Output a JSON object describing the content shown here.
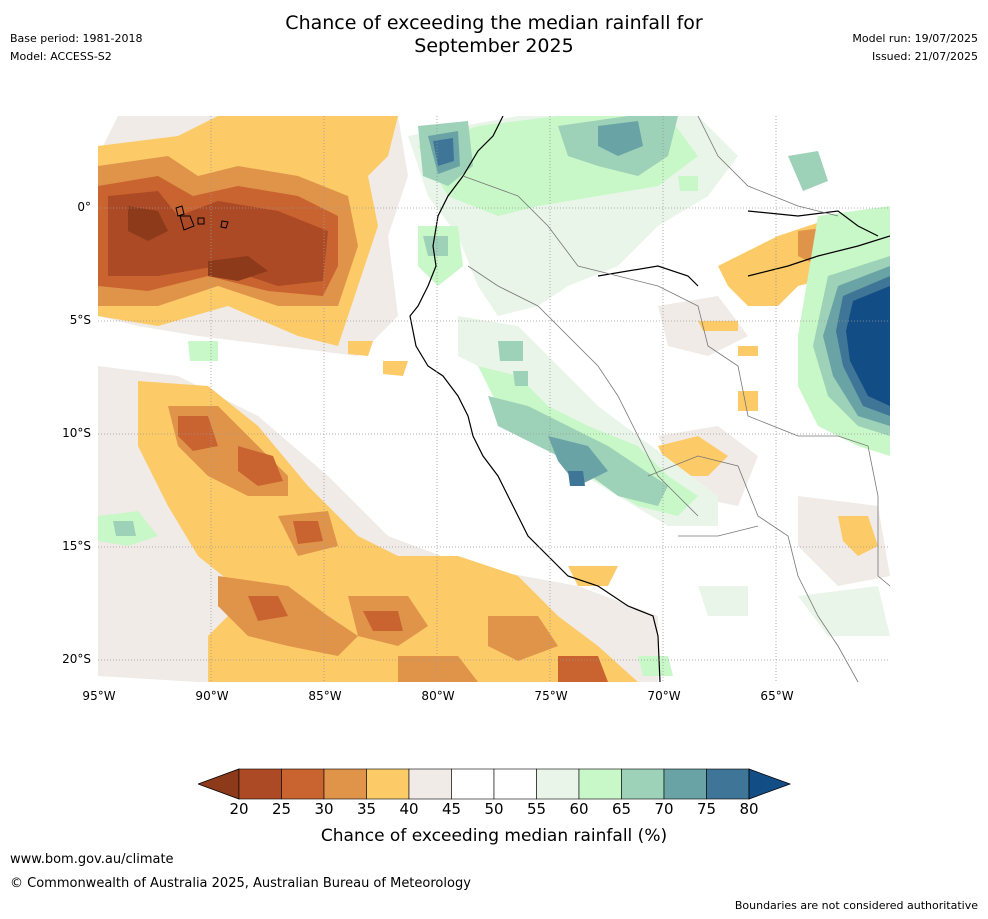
{
  "title_line1": "Chance of exceeding the median rainfall for",
  "title_line2": "September 2025",
  "base_period": "Base period: 1981-2018",
  "model": "Model: ACCESS-S2",
  "model_run": "Model run: 19/07/2025",
  "issued": "Issued: 21/07/2025",
  "lat_labels": [
    "0°",
    "5°S",
    "10°S",
    "15°S",
    "20°S"
  ],
  "lon_labels": [
    "95°W",
    "90°W",
    "85°W",
    "80°W",
    "75°W",
    "70°W",
    "65°W"
  ],
  "colorbar": {
    "title": "Chance of exceeding median rainfall (%)",
    "ticks": [
      "20",
      "25",
      "30",
      "35",
      "40",
      "45",
      "50",
      "55",
      "60",
      "65",
      "70",
      "75",
      "80"
    ],
    "colors": [
      "#8c3a1a",
      "#ad4a26",
      "#c96430",
      "#e0944a",
      "#fcca66",
      "#f0ebe6",
      "#ffffff",
      "#ffffff",
      "#e9f5e9",
      "#c8f7c8",
      "#9dd1b8",
      "#6aa3a6",
      "#3f7596",
      "#134d85"
    ]
  },
  "footer_url": "www.bom.gov.au/climate",
  "copyright": "© Commonwealth of Australia 2025, Australian Bureau of Meteorology",
  "disclaimer": "Boundaries are not considered authoritative"
}
